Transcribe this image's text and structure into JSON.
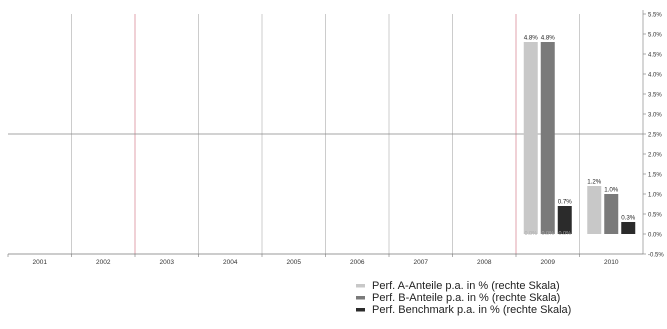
{
  "chart_data": {
    "type": "bar",
    "categories": [
      "2001",
      "2002",
      "2003",
      "2004",
      "2005",
      "2006",
      "2007",
      "2008",
      "2009",
      "2010"
    ],
    "series": [
      {
        "name": "Perf. A-Anteile p.a. in % (rechte Skala)",
        "values": [
          null,
          null,
          null,
          null,
          null,
          null,
          null,
          null,
          4.8,
          1.2
        ],
        "labels": [
          "",
          "",
          "",
          "",
          "",
          "",
          "",
          "",
          "4.8%",
          "1.2%"
        ],
        "color": "#c8c8c8"
      },
      {
        "name": "Perf. B-Anteile p.a. in % (rechte Skala)",
        "values": [
          null,
          null,
          null,
          null,
          null,
          null,
          null,
          null,
          4.8,
          1.0
        ],
        "labels": [
          "",
          "",
          "",
          "",
          "",
          "",
          "",
          "",
          "4.8%",
          "1.0%"
        ],
        "color": "#7a7a7a"
      },
      {
        "name": "Perf. Benchmark p.a. in % (rechte Skala)",
        "values": [
          null,
          null,
          null,
          null,
          null,
          null,
          null,
          null,
          0.7,
          0.3
        ],
        "labels": [
          "",
          "",
          "",
          "",
          "",
          "",
          "",
          "",
          "0.7%",
          "0.3%"
        ],
        "color": "#2b2b2b"
      }
    ],
    "zero_labels": [
      "0.0%",
      "0.0%",
      "0.0%"
    ],
    "y_axis": {
      "position": "right",
      "ylim": [
        -0.5,
        5.5
      ],
      "ticks": [
        5.5,
        5.0,
        4.5,
        4.0,
        3.5,
        3.0,
        2.5,
        2.0,
        1.5,
        1.0,
        0.5,
        0.0,
        -0.5
      ],
      "tick_labels": [
        "5.5%",
        "5.0%",
        "4.5%",
        "4.0%",
        "3.5%",
        "3.0%",
        "2.5%",
        "2.0%",
        "1.5%",
        "1.0%",
        "0.5%",
        "0.0%",
        "-0.5%"
      ]
    },
    "reference_line": 2.5,
    "legend_position": "bottom-right",
    "grid": true,
    "colors": {
      "gridline_vertical": "#aaaaaa",
      "gridline_red": "#cc6677",
      "reference_line": "#888888",
      "axis_text": "#333333"
    }
  }
}
